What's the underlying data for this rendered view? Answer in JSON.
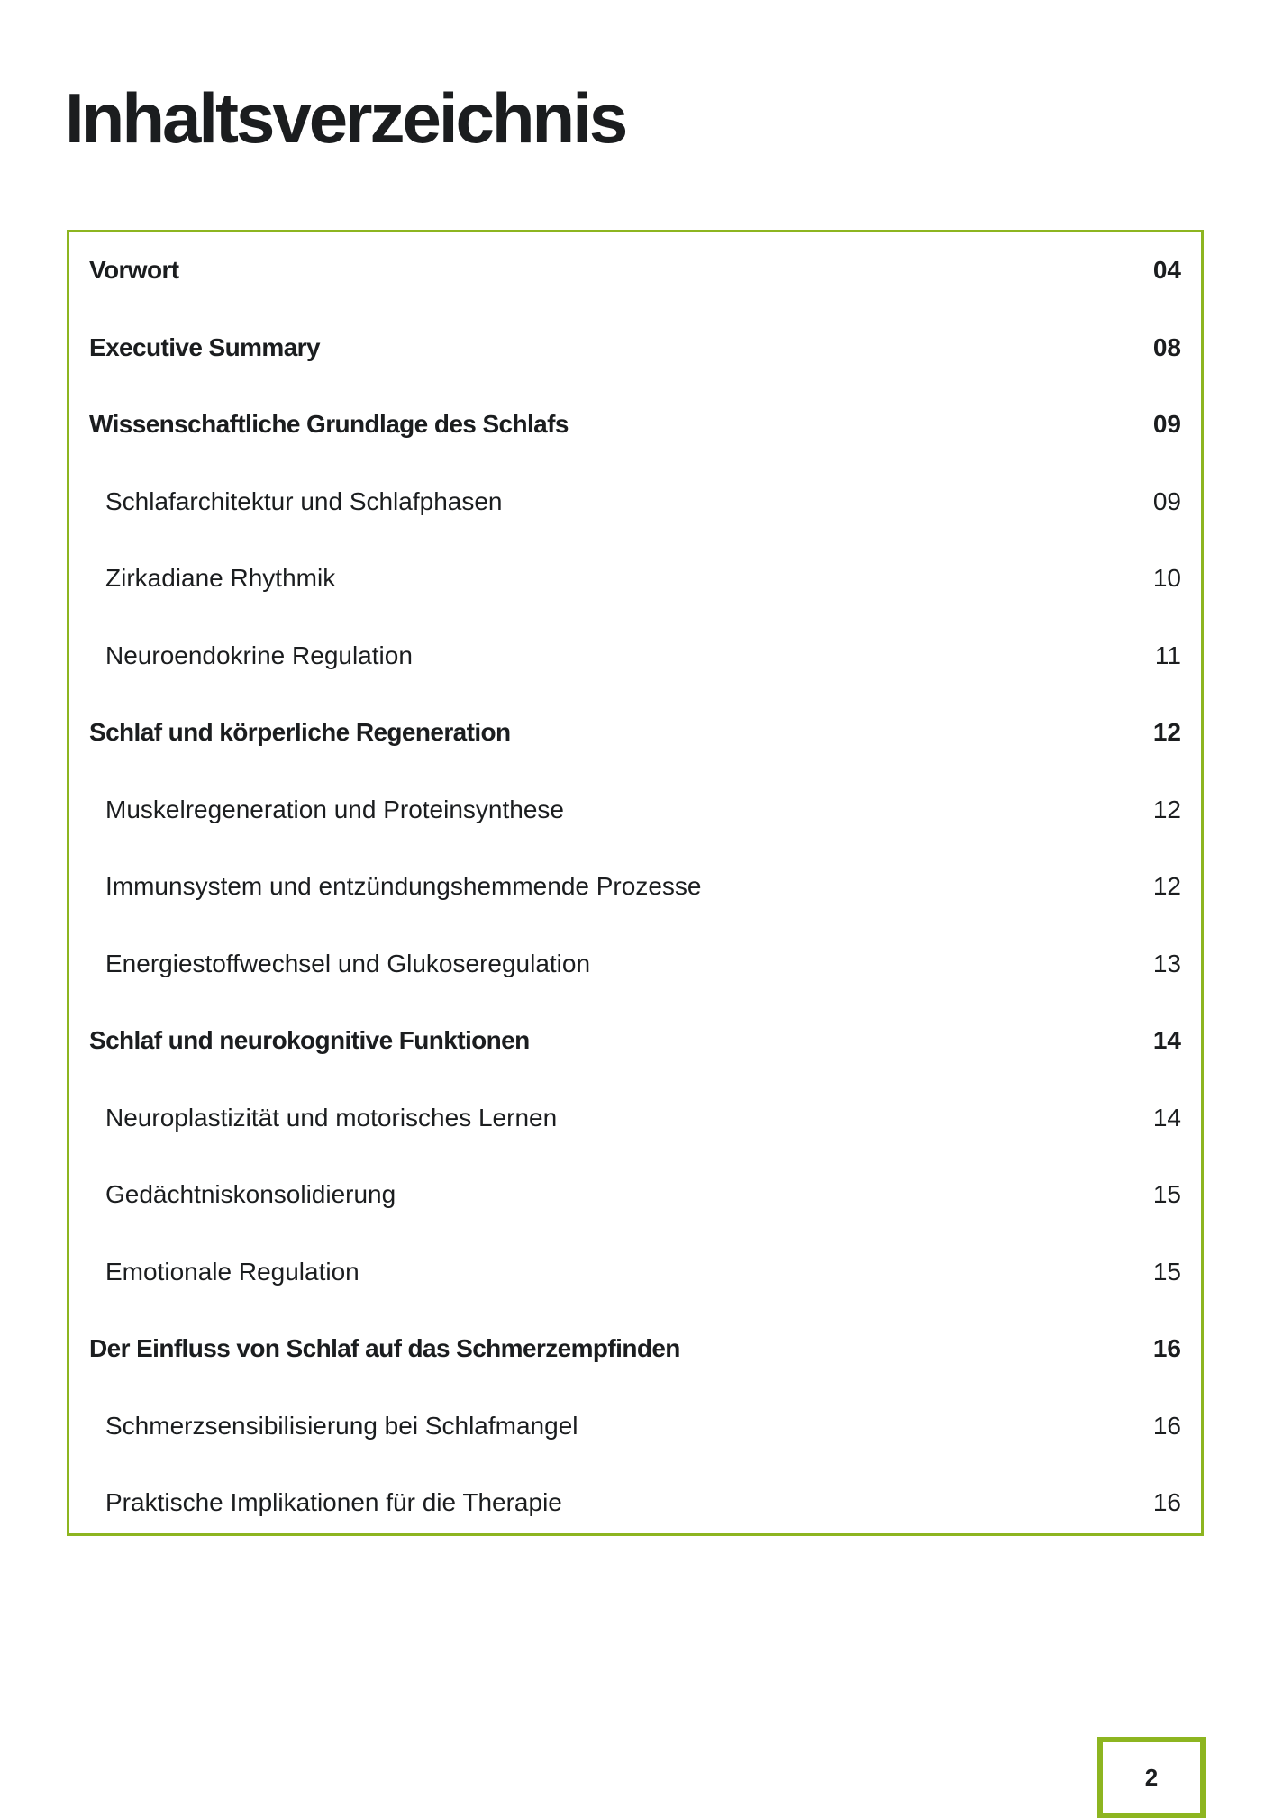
{
  "colors": {
    "accent": "#8db520",
    "text": "#1b1d1f"
  },
  "title": "Inhaltsverzeichnis",
  "toc": [
    {
      "label": "Vorwort",
      "page": "04",
      "level": "main"
    },
    {
      "label": "Executive Summary",
      "page": "08",
      "level": "main"
    },
    {
      "label": "Wissenschaftliche Grundlage des Schlafs",
      "page": "09",
      "level": "main"
    },
    {
      "label": "Schlafarchitektur und Schlafphasen",
      "page": "09",
      "level": "sub"
    },
    {
      "label": "Zirkadiane Rhythmik",
      "page": "10",
      "level": "sub"
    },
    {
      "label": "Neuroendokrine Regulation",
      "page": "11",
      "level": "sub"
    },
    {
      "label": "Schlaf und körperliche Regeneration",
      "page": "12",
      "level": "main"
    },
    {
      "label": "Muskelregeneration und Proteinsynthese",
      "page": "12",
      "level": "sub"
    },
    {
      "label": "Immunsystem und entzündungshemmende Prozesse",
      "page": "12",
      "level": "sub"
    },
    {
      "label": "Energiestoffwechsel und Glukoseregulation",
      "page": "13",
      "level": "sub"
    },
    {
      "label": "Schlaf und neurokognitive Funktionen",
      "page": "14",
      "level": "main"
    },
    {
      "label": "Neuroplastizität und motorisches Lernen",
      "page": "14",
      "level": "sub"
    },
    {
      "label": "Gedächtniskonsolidierung",
      "page": "15",
      "level": "sub"
    },
    {
      "label": "Emotionale Regulation",
      "page": "15",
      "level": "sub"
    },
    {
      "label": "Der Einfluss von Schlaf auf das Schmerzempfinden",
      "page": "16",
      "level": "main"
    },
    {
      "label": "Schmerzsensibilisierung bei Schlafmangel",
      "page": "16",
      "level": "sub"
    },
    {
      "label": "Praktische Implikationen für die Therapie",
      "page": "16",
      "level": "sub"
    }
  ],
  "page_number": "2"
}
